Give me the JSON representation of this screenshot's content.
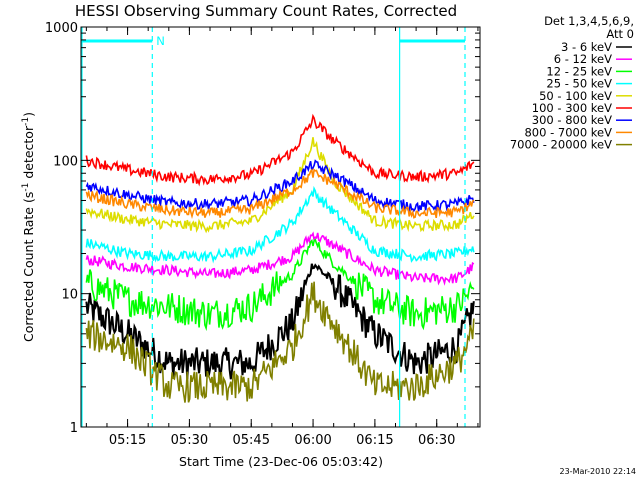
{
  "chart_data": {
    "type": "line",
    "title": "HESSI Observing Summary Count Rates, Corrected",
    "xlabel": "Start Time (23-Dec-06 05:03:42)",
    "ylabel": "Corrected Count Rate (s⁻¹ detector⁻¹)",
    "ylabel_base": "Corrected Count Rate (s",
    "ylabel_mid": " detector",
    "ylabel_sup": "-1",
    "ylabel_end": ")",
    "yscale": "log",
    "ylim": [
      1,
      1000
    ],
    "xlim": [
      "05:03:42",
      "06:40:30"
    ],
    "x_ticks": [
      "05:15",
      "05:30",
      "05:45",
      "06:00",
      "06:15",
      "06:30"
    ],
    "y_ticks": [
      "1",
      "10",
      "100",
      "1000"
    ],
    "legend_placement": "right",
    "legend_header": [
      "Det 1,3,4,5,6,9,",
      "Att 0"
    ],
    "timestamp": "23-Mar-2010 22:14",
    "night_marker": "N",
    "night_interval": [
      "05:21",
      "06:21"
    ],
    "x": [
      "05:05",
      "05:15",
      "05:25",
      "05:35",
      "05:45",
      "05:55",
      "06:00",
      "06:05",
      "06:15",
      "06:25",
      "06:35",
      "06:39"
    ],
    "series": [
      {
        "name": "3 - 6 keV",
        "color": "#000000",
        "values": [
          8,
          5,
          3,
          3,
          3,
          6,
          17,
          12,
          5,
          3,
          4,
          8
        ]
      },
      {
        "name": "6 - 12 keV",
        "color": "#ff00ff",
        "values": [
          18,
          16,
          15,
          14,
          15,
          19,
          28,
          23,
          15,
          13,
          13,
          16
        ]
      },
      {
        "name": "12 - 25 keV",
        "color": "#00ff00",
        "values": [
          12,
          9,
          8,
          7,
          8,
          14,
          25,
          17,
          9,
          7,
          8,
          11
        ]
      },
      {
        "name": "25 - 50 keV",
        "color": "#00ffff",
        "values": [
          24,
          20,
          19,
          19,
          21,
          34,
          58,
          41,
          21,
          19,
          20,
          22
        ]
      },
      {
        "name": "50 - 100 keV",
        "color": "#dddd00",
        "values": [
          42,
          36,
          33,
          32,
          35,
          60,
          140,
          70,
          35,
          32,
          33,
          40
        ]
      },
      {
        "name": "100 - 300 keV",
        "color": "#ff0000",
        "values": [
          100,
          85,
          75,
          72,
          78,
          115,
          200,
          140,
          80,
          75,
          80,
          95
        ]
      },
      {
        "name": "300 - 800 keV",
        "color": "#0000ff",
        "values": [
          65,
          55,
          48,
          47,
          50,
          70,
          93,
          78,
          50,
          45,
          47,
          52
        ]
      },
      {
        "name": "800 - 7000 keV",
        "color": "#ff8800",
        "values": [
          55,
          47,
          42,
          40,
          43,
          60,
          80,
          68,
          44,
          40,
          41,
          48
        ]
      },
      {
        "name": "7000 - 20000 keV",
        "color": "#808000",
        "values": [
          5,
          4,
          2,
          2,
          2,
          4,
          10,
          6,
          2,
          2,
          3,
          5
        ]
      }
    ]
  }
}
